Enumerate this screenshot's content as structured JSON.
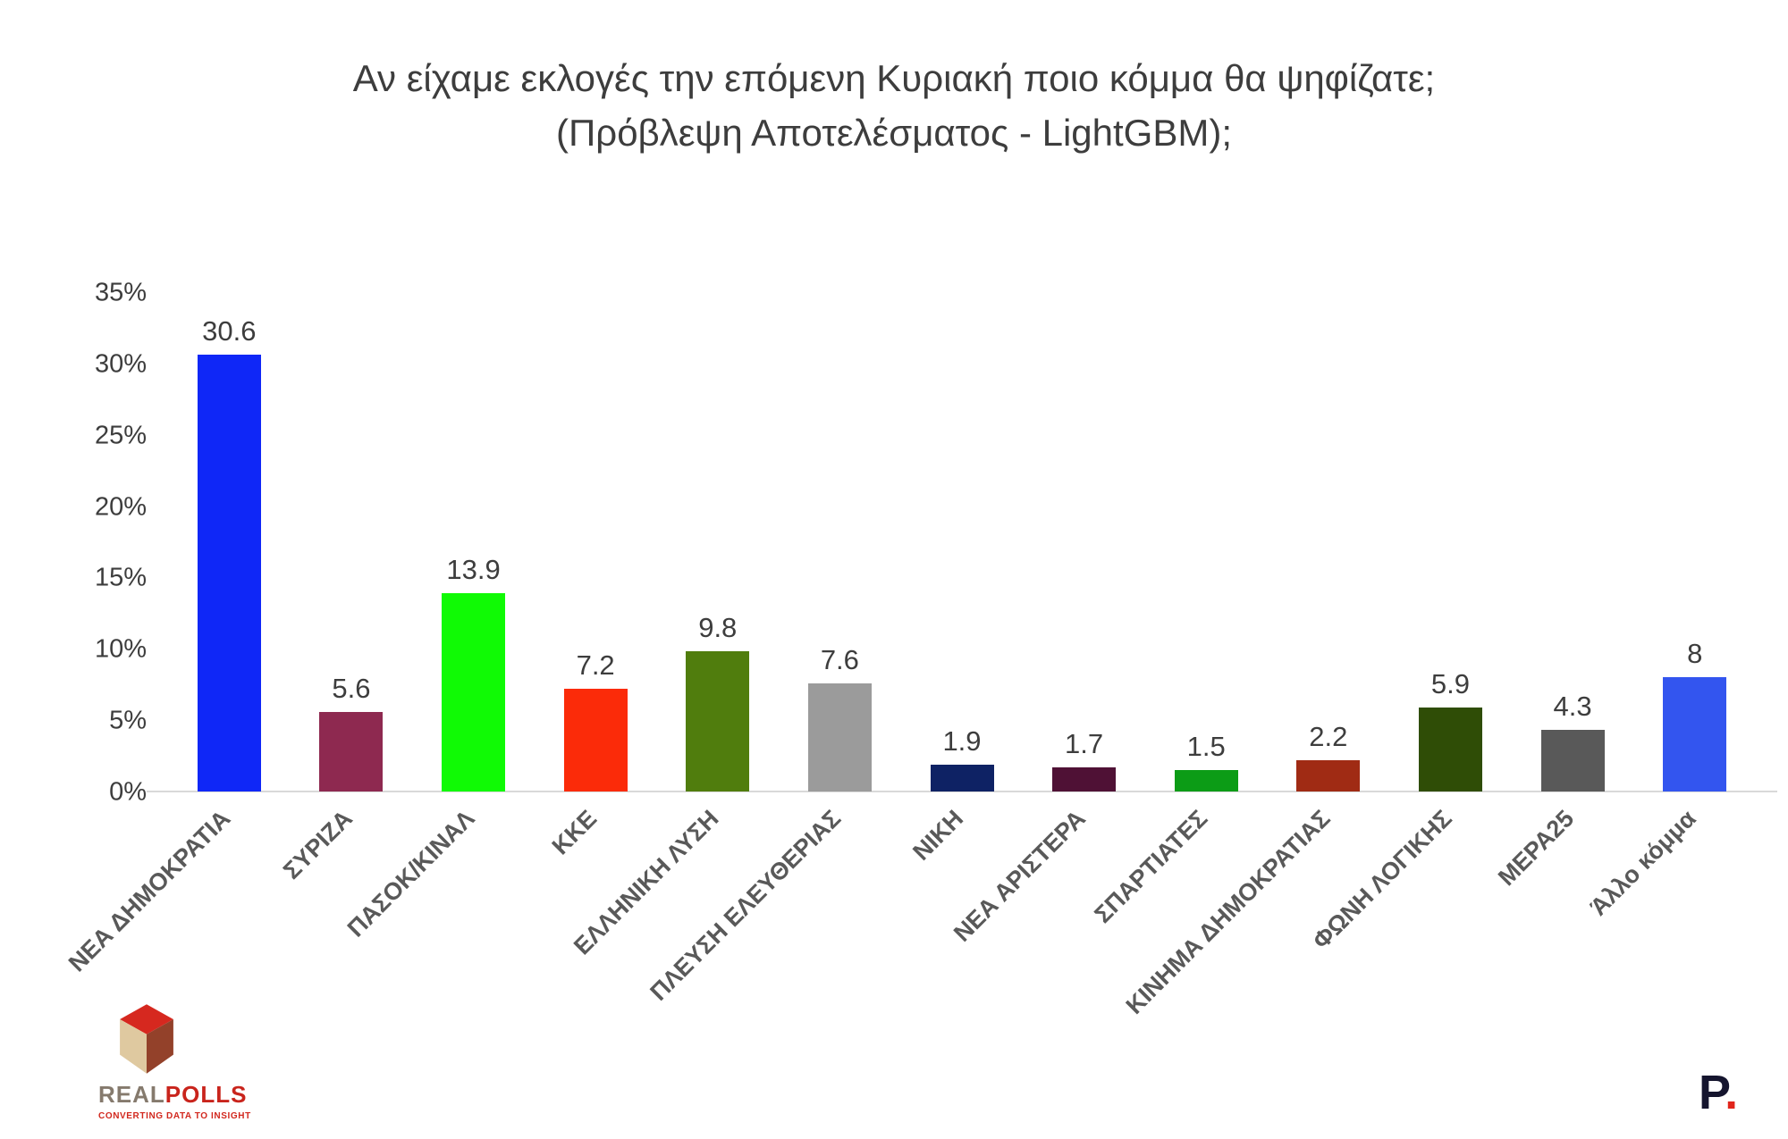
{
  "chart_data": {
    "type": "bar",
    "title": "Αν είχαμε εκλογές την επόμενη Κυριακή ποιο κόμμα θα ψηφίζατε; (Πρόβλεψη Αποτελέσματος - LightGBM);",
    "title_lines": [
      "Αν είχαμε εκλογές την επόμενη Κυριακή ποιο κόμμα θα ψηφίζατε;",
      "(Πρόβλεψη Αποτελέσματος - LightGBM);"
    ],
    "categories": [
      "ΝΕΑ ΔΗΜΟΚΡΑΤΙΑ",
      "ΣΥΡΙΖΑ",
      "ΠΑΣΟΚ/ΚΙΝΑΛ",
      "ΚΚΕ",
      "ΕΛΛΗΝΙΚΗ ΛΥΣΗ",
      "ΠΛΕΥΣΗ ΕΛΕΥΘΕΡΙΑΣ",
      "ΝΙΚΗ",
      "ΝΕΑ ΑΡΙΣΤΕΡΑ",
      "ΣΠΑΡΤΙΑΤΕΣ",
      "ΚΙΝΗΜΑ ΔΗΜΟΚΡΑΤΙΑΣ",
      "ΦΩΝΗ ΛΟΓΙΚΗΣ",
      "ΜΕΡΑ25",
      "Άλλο κόμμα"
    ],
    "values": [
      30.6,
      5.6,
      13.9,
      7.2,
      9.8,
      7.6,
      1.9,
      1.7,
      1.5,
      2.2,
      5.9,
      4.3,
      8
    ],
    "value_labels": [
      "30.6",
      "5.6",
      "13.9",
      "7.2",
      "9.8",
      "7.6",
      "1.9",
      "1.7",
      "1.5",
      "2.2",
      "5.9",
      "4.3",
      "8"
    ],
    "bar_colors": [
      "#0f27f7",
      "#8e2950",
      "#10fa05",
      "#fb2b09",
      "#507d0d",
      "#9b9b9b",
      "#0e2264",
      "#4f1135",
      "#0c9c16",
      "#a02b14",
      "#2f4d06",
      "#595959",
      "#3355ef"
    ],
    "xlabel": "",
    "ylabel": "",
    "ylim": [
      0,
      35
    ],
    "yticks": [
      "35%",
      "30%",
      "25%",
      "20%",
      "15%",
      "10%",
      "5%",
      "0%"
    ],
    "grid": false,
    "legend": null,
    "axis_line_color": "#d9d9d9",
    "category_label_color": "#595959",
    "value_label_color": "#3d3d3d"
  },
  "branding": {
    "logo": {
      "word_real": "REAL",
      "word_polls": "POLLS",
      "tagline": "CONVERTING DATA TO INSIGHT",
      "cube_colors": {
        "top": "#d6281f",
        "left": "#dfc9a0",
        "right": "#93412a"
      }
    },
    "watermark": {
      "letter": "P",
      "dot": "."
    }
  }
}
